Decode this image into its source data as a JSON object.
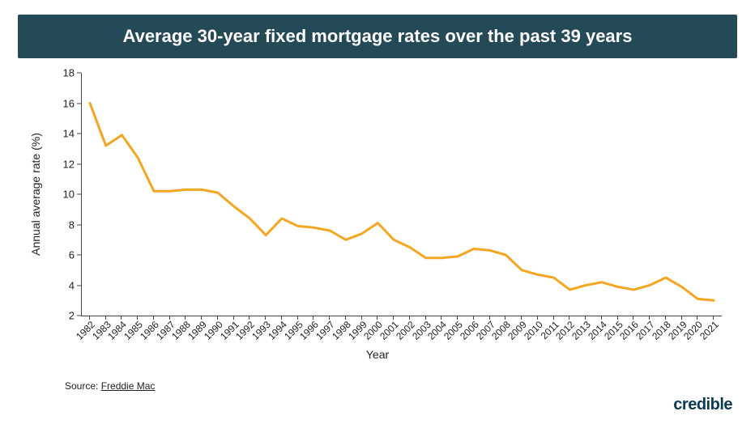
{
  "title": "Average 30-year fixed mortgage rates over the past 39 years",
  "title_bar_color": "#234a56",
  "chart": {
    "type": "line",
    "xlabel": "Year",
    "ylabel": "Annual average rate (%)",
    "label_fontsize": 14,
    "tick_fontsize": 13,
    "ylim": [
      2,
      18
    ],
    "ytick_step": 2,
    "yticks": [
      2,
      4,
      6,
      8,
      10,
      12,
      14,
      16,
      18
    ],
    "x_categories": [
      "1982",
      "1983",
      "1984",
      "1985",
      "1986",
      "1987",
      "1988",
      "1989",
      "1990",
      "1991",
      "1992",
      "1993",
      "1994",
      "1995",
      "1996",
      "1997",
      "1998",
      "1999",
      "2000",
      "2001",
      "2002",
      "2003",
      "2004",
      "2005",
      "2006",
      "2007",
      "2008",
      "2009",
      "2010",
      "2011",
      "2012",
      "2013",
      "2014",
      "2015",
      "2016",
      "2017",
      "2018",
      "2019",
      "2020",
      "2021"
    ],
    "values": [
      16.0,
      13.2,
      13.9,
      12.4,
      10.2,
      10.2,
      10.3,
      10.3,
      10.1,
      9.2,
      8.4,
      7.3,
      8.4,
      7.9,
      7.8,
      7.6,
      7.0,
      7.4,
      8.1,
      7.0,
      6.5,
      5.8,
      5.8,
      5.9,
      6.4,
      6.3,
      6.0,
      5.0,
      4.7,
      4.5,
      3.7,
      4.0,
      4.2,
      3.9,
      3.7,
      4.0,
      4.5,
      3.9,
      3.1,
      3.0
    ],
    "line_color": "#f5a623",
    "line_width": 3,
    "background_color": "#ffffff",
    "axis_color": "#444444",
    "tick_color": "#222222",
    "xlabel_rotation": -45
  },
  "source": {
    "label": "Source: ",
    "name": "Freddie Mac"
  },
  "brand": {
    "text_a": "cred",
    "text_b": "ible",
    "color": "#0b3a55"
  }
}
